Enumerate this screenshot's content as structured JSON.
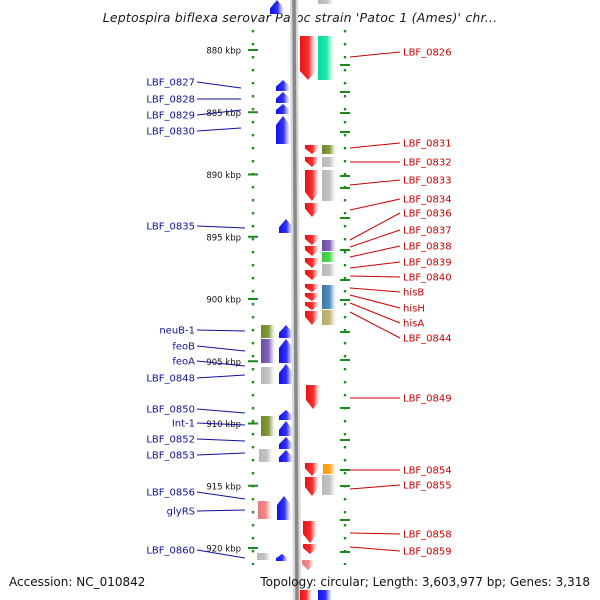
{
  "title": "Leptospira biflexa serovar Patoc strain 'Patoc 1 (Ames)' chr...",
  "footer": {
    "accession": "Accession: NC_010842",
    "summary": "Topology: circular; Length: 3,603,977 bp; Genes: 3,318"
  },
  "ruler": [
    {
      "label": "880 kbp",
      "kbp": 880
    },
    {
      "label": "885 kbp",
      "kbp": 885
    },
    {
      "label": "890 kbp",
      "kbp": 890
    },
    {
      "label": "895 kbp",
      "kbp": 895
    },
    {
      "label": "900 kbp",
      "kbp": 900
    },
    {
      "label": "905 kbp",
      "kbp": 905
    },
    {
      "label": "910 kbp",
      "kbp": 910
    },
    {
      "label": "915 kbp",
      "kbp": 915
    },
    {
      "label": "920 kbp",
      "kbp": 920
    }
  ],
  "left_labels": [
    "LBF_0827",
    "LBF_0828",
    "LBF_0829",
    "LBF_0830",
    "LBF_0835",
    "neuB-1",
    "feoB",
    "feoA",
    "LBF_0848",
    "LBF_0850",
    "Int-1",
    "LBF_0852",
    "LBF_0853",
    "LBF_0856",
    "glyRS",
    "LBF_0860"
  ],
  "right_labels": [
    "LBF_0826",
    "LBF_0831",
    "LBF_0832",
    "LBF_0833",
    "LBF_0834",
    "LBF_0836",
    "LBF_0837",
    "LBF_0838",
    "LBF_0839",
    "LBF_0840",
    "hisB",
    "hisH",
    "hisA",
    "LBF_0844",
    "LBF_0849",
    "LBF_0854",
    "LBF_0855",
    "LBF_0858",
    "LBF_0859"
  ],
  "colors": {
    "forward_gene": "#1010ee",
    "reverse_gene": "#ee1010",
    "left_label_text": "#1010a0",
    "right_label_text": "#cc0000",
    "backbone": "#888888",
    "tick": "#1a8a1a",
    "orange": "#ff9900",
    "teal": "#00e0a0",
    "olive": "#6e8a20",
    "purple": "#6a4aa8",
    "green": "#33cc33",
    "steelblue": "#3a78b0",
    "khaki": "#b8aa60",
    "pink": "#e87878",
    "grey": "#b8b8b8"
  }
}
